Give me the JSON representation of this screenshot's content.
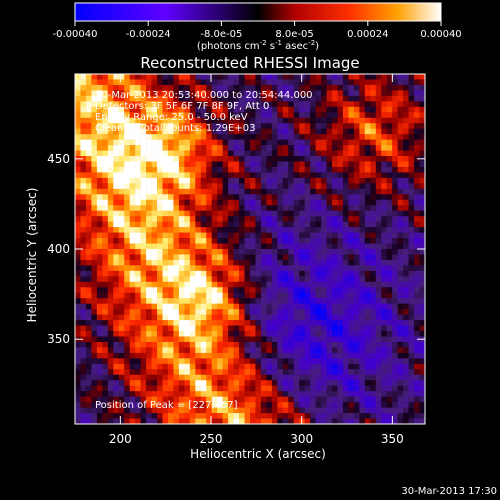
{
  "chart_data": {
    "type": "heatmap",
    "title": "Reconstructed RHESSI Image",
    "xlabel": "Heliocentric X (arcsec)",
    "ylabel": "Heliocentric Y (arcsec)",
    "xlim": [
      175,
      368
    ],
    "ylim": [
      303,
      497
    ],
    "xticks": [
      200,
      250,
      300,
      350
    ],
    "yticks": [
      350,
      400,
      450
    ],
    "colorbar": {
      "range": [
        -0.0004,
        0.0004
      ],
      "ticks": [
        "-0.00040",
        "-0.00024",
        "-8.0e-05",
        "8.0e-05",
        "0.00024",
        "0.00040"
      ],
      "tick_values": [
        -0.0004,
        -0.00024,
        -8e-05,
        8e-05,
        0.00024,
        0.0004
      ],
      "unit_prefix": "(photons cm",
      "unit_exp1": "-2",
      "unit_mid": " s",
      "unit_exp2": "-1",
      "unit_mid2": " asec",
      "unit_exp3": "-2",
      "unit_suffix": ")"
    },
    "annotations": {
      "time_range": "30-Mar-2013 20:53:40.000 to 20:54:44.000",
      "detectors": "Detectors: 3F 5F 6F 7F 8F 9F, Att 0",
      "energy_range": "Energy Range: 25.0 - 50.0 keV",
      "clean_line": "Clean     Total counts: 1.29E+03",
      "peak": "Position of Peak = [227,457]"
    },
    "peak_position": [
      227,
      457
    ],
    "timestamp": "30-Mar-2013 17:30"
  }
}
